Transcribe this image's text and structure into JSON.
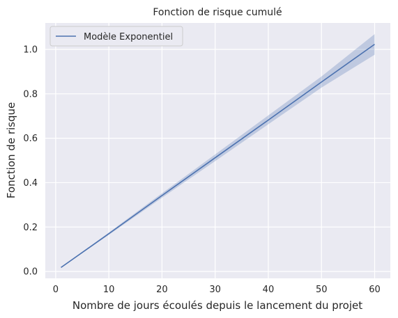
{
  "chart_data": {
    "type": "line",
    "title": "Fonction de risque cumulé",
    "xlabel": "Nombre de jours écoulés depuis le lancement du projet",
    "ylabel": "Fonction de risque",
    "xlim": [
      -1.95,
      62.95
    ],
    "ylim": [
      -0.031,
      1.119
    ],
    "x_ticks": [
      0,
      10,
      20,
      30,
      40,
      50,
      60
    ],
    "x_tick_labels": [
      "0",
      "10",
      "20",
      "30",
      "40",
      "50",
      "60"
    ],
    "y_ticks": [
      0.0,
      0.2,
      0.4,
      0.6,
      0.8,
      1.0
    ],
    "y_tick_labels": [
      "0.0",
      "0.2",
      "0.4",
      "0.6",
      "0.8",
      "1.0"
    ],
    "grid": true,
    "legend_position": "top-left",
    "series": [
      {
        "name": "Modèle Exponentiel",
        "color": "#4c72b0",
        "band_color": "#4c72b0",
        "x": [
          1,
          10,
          20,
          30,
          40,
          50,
          60
        ],
        "y": [
          0.018,
          0.17,
          0.342,
          0.512,
          0.682,
          0.853,
          1.023
        ],
        "band_lower": [
          0.017,
          0.165,
          0.332,
          0.497,
          0.663,
          0.828,
          0.976
        ],
        "band_upper": [
          0.019,
          0.175,
          0.352,
          0.527,
          0.703,
          0.878,
          1.069
        ]
      }
    ]
  }
}
